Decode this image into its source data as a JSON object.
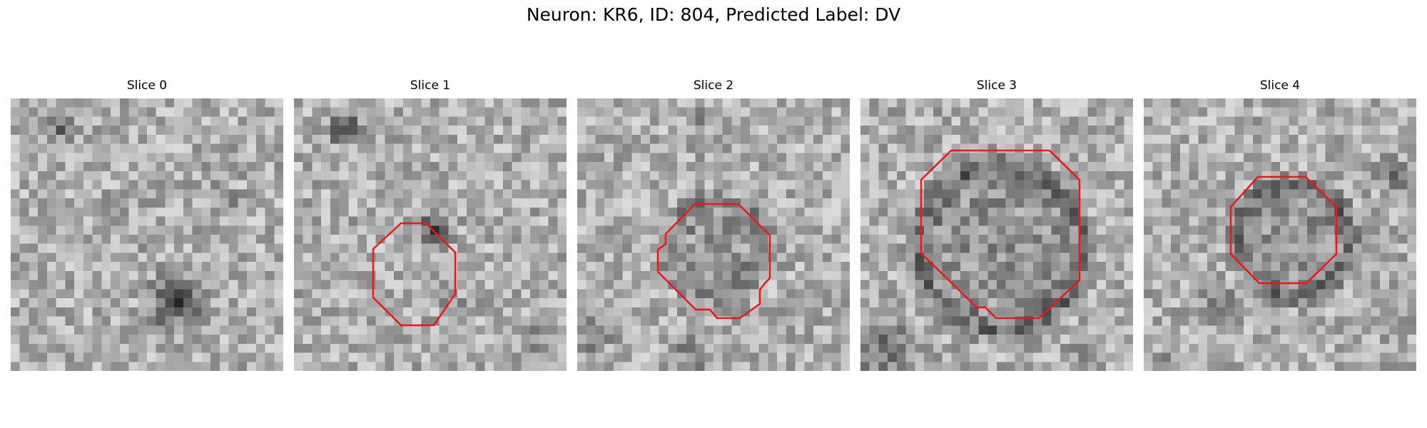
{
  "figure": {
    "suptitle": "Neuron: KR6, ID: 804, Predicted Label: DV"
  },
  "contour_color": "#e8191b",
  "slices": [
    {
      "title": "Slice 0",
      "has_contour": false
    },
    {
      "title": "Slice 1",
      "has_contour": true
    },
    {
      "title": "Slice 2",
      "has_contour": true
    },
    {
      "title": "Slice 3",
      "has_contour": true
    },
    {
      "title": "Slice 4",
      "has_contour": true
    }
  ]
}
